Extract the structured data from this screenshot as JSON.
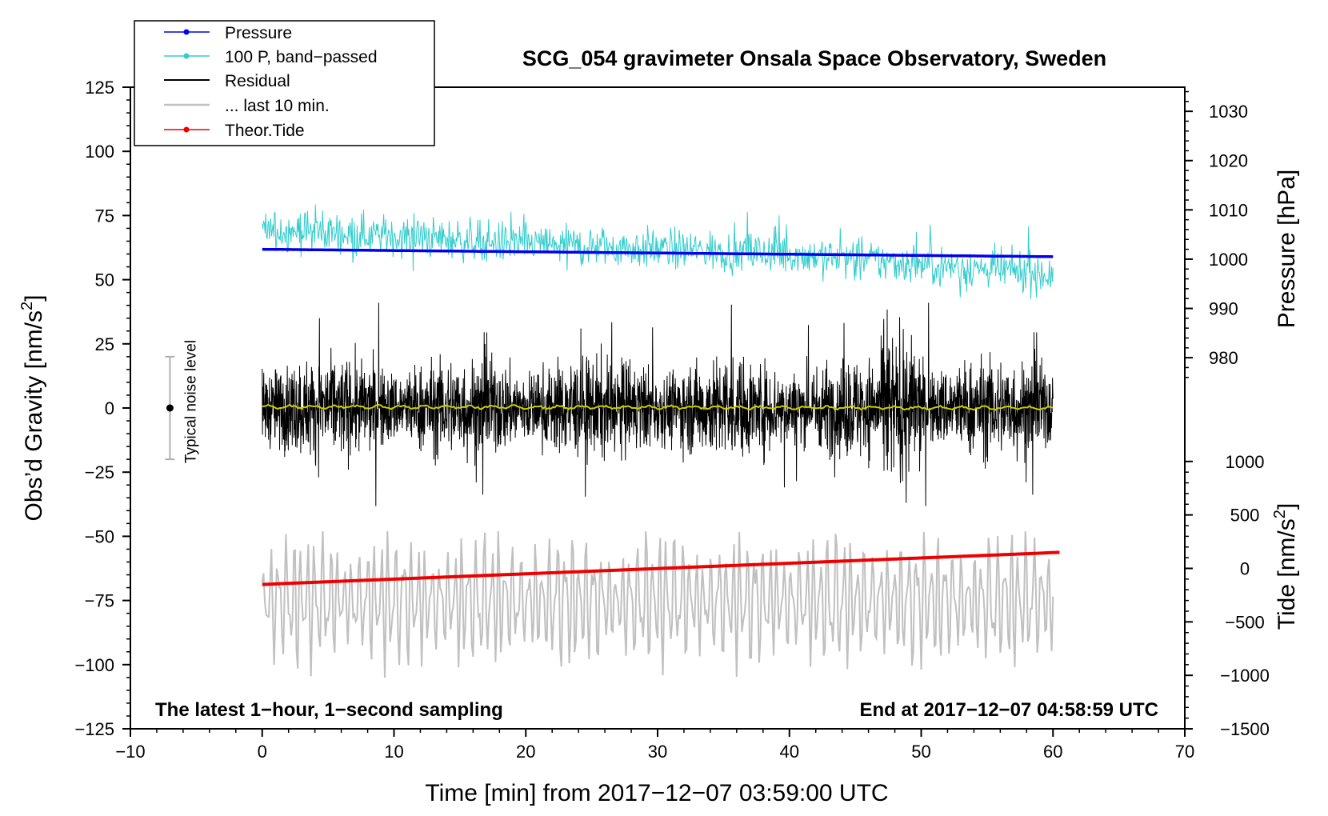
{
  "chart_data": {
    "type": "line",
    "title": "SCG_054 gravimeter Onsala Space Observatory, Sweden",
    "xlabel": "Time [min] from 2017−12−07 03:59:00 UTC",
    "ylabel_left": "Obs’d Gravity [nm/s",
    "ylabel_left_sup": "2",
    "ylabel_left_end": "]",
    "ylabel_right_pressure": "Pressure [hPa]",
    "ylabel_right_tide": "Tide [nm/s",
    "ylabel_right_tide_sup": "2",
    "ylabel_right_tide_end": "]",
    "xlim": [
      -10,
      70
    ],
    "ylim_left": [
      -125,
      125
    ],
    "x_ticks": [
      -10,
      0,
      10,
      20,
      30,
      40,
      50,
      60,
      70
    ],
    "x_tick_labels": [
      "−10",
      "0",
      "10",
      "20",
      "30",
      "40",
      "50",
      "60",
      "70"
    ],
    "y_left_ticks": [
      125,
      100,
      75,
      50,
      25,
      0,
      -25,
      -50,
      -75,
      -100,
      -125
    ],
    "y_left_tick_labels": [
      "125",
      "100",
      "75",
      "50",
      "25",
      "0",
      "−25",
      "−50",
      "−75",
      "−100",
      "−125"
    ],
    "pressure_axis": {
      "ticks": [
        1030,
        1020,
        1010,
        1000,
        990,
        980
      ],
      "tick_labels": [
        "1030",
        "1020",
        "1010",
        "1000",
        "990",
        "980"
      ],
      "gravity_at_1000": 58,
      "gravity_per_hpa": 1.92
    },
    "tide_axis": {
      "ticks": [
        1000,
        500,
        0,
        -500,
        -1000,
        -1500
      ],
      "tick_labels": [
        "1000",
        "500",
        "0",
        "−500",
        "−1000",
        "−1500"
      ],
      "gravity_at_0": -62.5,
      "gravity_per_unit": 0.04167
    },
    "series": [
      {
        "name": "Pressure",
        "color": "#0000ee",
        "axis": "pressure",
        "x": [
          0,
          60
        ],
        "values": [
          1002.0,
          1000.5
        ]
      },
      {
        "name": "100 P, band−passed",
        "color": "#33cccc",
        "axis": "left",
        "x": [
          0,
          10,
          20,
          30,
          40,
          50,
          60
        ],
        "values": [
          70,
          67,
          64,
          62,
          60,
          56,
          52
        ],
        "amplitude": 5
      },
      {
        "name": "Residual",
        "color": "#000000",
        "axis": "left",
        "x": [
          0,
          60
        ],
        "values": [
          0,
          0
        ],
        "amplitude": 12
      },
      {
        "name": "... last 10 min.",
        "color": "#c0c0c0",
        "axis": "left",
        "x": [
          0,
          60
        ],
        "values": [
          -75,
          -75
        ],
        "amplitude": 20
      },
      {
        "name": "Theor.Tide",
        "color": "#ee0000",
        "axis": "tide",
        "x": [
          0,
          60.5
        ],
        "values": [
          -150,
          150
        ]
      },
      {
        "name": "residual smoothed",
        "color": "#cccc00",
        "axis": "left",
        "x": [
          0,
          60
        ],
        "values": [
          0.5,
          0
        ],
        "amplitude": 0.8
      }
    ],
    "legend": {
      "placement": "top-left",
      "entries": [
        "Pressure",
        "100 P, band−passed",
        "Residual",
        "... last 10 min.",
        "Theor.Tide"
      ]
    },
    "noise_level": {
      "label": "Typical noise level",
      "x": -7,
      "center": 0,
      "half_range": 20
    },
    "note_left": "The latest 1−hour, 1−second sampling",
    "note_right": "End at 2017−12−07 04:58:59 UTC",
    "grid": false
  }
}
